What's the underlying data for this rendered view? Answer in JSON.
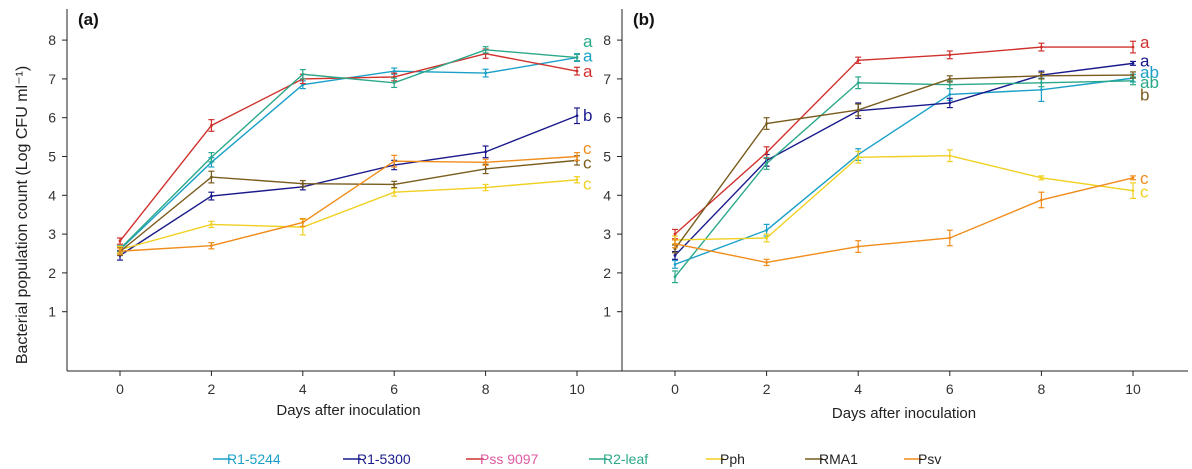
{
  "figure": {
    "ylabel": "Bacterial population count (Log CFU ml⁻¹)",
    "xlabel": "Days after inoculation",
    "panel_labels": [
      "(a)",
      "(b)"
    ]
  },
  "chart_data": [
    {
      "type": "line",
      "panel": "(a)",
      "x": [
        0,
        2,
        4,
        6,
        8,
        10
      ],
      "xlabel": "Days after inoculation",
      "ylabel": "Bacterial population count (Log CFU ml⁻¹)",
      "ylim": [
        0,
        8.4
      ],
      "yticks": [
        1,
        2,
        3,
        4,
        5,
        6,
        7,
        8
      ],
      "xticks": [
        0,
        2,
        4,
        6,
        8,
        10
      ],
      "grid": false,
      "series": [
        {
          "name": "R1-5244",
          "color": "#1aa0c8",
          "values": [
            2.6,
            4.85,
            6.85,
            7.2,
            7.15,
            7.55
          ],
          "err": [
            0.08,
            0.12,
            0.1,
            0.08,
            0.1,
            0.1
          ],
          "letter": "a"
        },
        {
          "name": "R1-5300",
          "color": "#1a1a8c",
          "values": [
            2.45,
            3.98,
            4.22,
            4.78,
            5.12,
            6.05
          ],
          "err": [
            0.12,
            0.1,
            0.08,
            0.12,
            0.15,
            0.2
          ],
          "letter": "b"
        },
        {
          "name": "Pss 9097",
          "color": "#d0312d",
          "values": [
            2.82,
            5.8,
            7.0,
            7.05,
            7.65,
            7.2
          ],
          "err": [
            0.08,
            0.15,
            0.12,
            0.1,
            0.12,
            0.1
          ],
          "letter": "a"
        },
        {
          "name": "R2-leaf",
          "color": "#2aa889",
          "values": [
            2.62,
            4.98,
            7.12,
            6.9,
            7.75,
            7.55
          ],
          "err": [
            0.08,
            0.12,
            0.12,
            0.12,
            0.08,
            0.08
          ],
          "letter": "a"
        },
        {
          "name": "Pph",
          "color": "#f0d020",
          "values": [
            2.6,
            3.25,
            3.18,
            4.08,
            4.2,
            4.4
          ],
          "err": [
            0.08,
            0.08,
            0.2,
            0.1,
            0.08,
            0.08
          ],
          "letter": "c"
        },
        {
          "name": "RMA1",
          "color": "#7a5c1e",
          "values": [
            2.55,
            4.47,
            4.3,
            4.28,
            4.68,
            4.9
          ],
          "err": [
            0.1,
            0.15,
            0.08,
            0.08,
            0.12,
            0.12
          ],
          "letter": "c"
        },
        {
          "name": "Psv",
          "color": "#f08c1a",
          "values": [
            2.56,
            2.7,
            3.3,
            4.88,
            4.85,
            5.0
          ],
          "err": [
            0.08,
            0.08,
            0.1,
            0.15,
            0.08,
            0.1
          ],
          "letter": "c"
        }
      ],
      "letter_colors": [
        "#2aa889",
        "#1aa0c8",
        "#d0312d",
        "#1a1a8c",
        "#f08c1a",
        "#7a5c1e",
        "#f0d020"
      ],
      "letter_texts": [
        "a",
        "a",
        "a",
        "b",
        "c",
        "c",
        "c"
      ],
      "letter_values": [
        7.98,
        7.6,
        7.2,
        6.07,
        5.22,
        4.85,
        4.3
      ]
    },
    {
      "type": "line",
      "panel": "(b)",
      "x": [
        0,
        2,
        4,
        6,
        8,
        10
      ],
      "xlabel": "Days after inoculation",
      "ylabel": "",
      "ylim": [
        0,
        8.4
      ],
      "yticks": [
        1,
        2,
        3,
        4,
        5,
        6,
        7,
        8
      ],
      "xticks": [
        0,
        2,
        4,
        6,
        8,
        10
      ],
      "grid": false,
      "series": [
        {
          "name": "R1-5244",
          "color": "#1aa0c8",
          "values": [
            2.22,
            3.1,
            5.05,
            6.6,
            6.72,
            7.02
          ],
          "err": [
            0.1,
            0.15,
            0.15,
            0.15,
            0.3,
            0.1
          ],
          "letter": "ab"
        },
        {
          "name": "R1-5300",
          "color": "#1a1a8c",
          "values": [
            2.45,
            4.9,
            6.18,
            6.38,
            7.1,
            7.4
          ],
          "err": [
            0.1,
            0.15,
            0.2,
            0.12,
            0.1,
            0.05
          ],
          "letter": "a"
        },
        {
          "name": "Pss 9097",
          "color": "#d0312d",
          "values": [
            3.0,
            5.1,
            7.48,
            7.62,
            7.82,
            7.82
          ],
          "err": [
            0.12,
            0.15,
            0.08,
            0.1,
            0.1,
            0.15
          ],
          "letter": "a"
        },
        {
          "name": "R2-leaf",
          "color": "#2aa889",
          "values": [
            1.9,
            4.82,
            6.9,
            6.85,
            6.9,
            6.95
          ],
          "err": [
            0.15,
            0.15,
            0.15,
            0.1,
            0.1,
            0.1
          ],
          "letter": "ab"
        },
        {
          "name": "Pph",
          "color": "#f0d020",
          "values": [
            2.85,
            2.9,
            4.98,
            5.02,
            4.45,
            4.12
          ],
          "err": [
            0.1,
            0.1,
            0.15,
            0.15,
            0.05,
            0.2
          ],
          "letter": "c"
        },
        {
          "name": "RMA1",
          "color": "#7a5c1e",
          "values": [
            2.62,
            5.85,
            6.2,
            7.0,
            7.08,
            7.1
          ],
          "err": [
            0.1,
            0.15,
            0.15,
            0.08,
            0.08,
            0.08
          ],
          "letter": "b"
        },
        {
          "name": "Psv",
          "color": "#f08c1a",
          "values": [
            2.75,
            2.27,
            2.68,
            2.9,
            3.88,
            4.45
          ],
          "err": [
            0.1,
            0.08,
            0.15,
            0.2,
            0.2,
            0.05
          ],
          "letter": "c"
        }
      ],
      "letter_colors": [
        "#d0312d",
        "#1a1a8c",
        "#1aa0c8",
        "#2aa889",
        "#7a5c1e",
        "#f08c1a",
        "#f0d020"
      ],
      "letter_texts": [
        "a",
        "a",
        "ab",
        "ab",
        "b",
        "c",
        "c"
      ],
      "letter_values": [
        7.95,
        7.48,
        7.18,
        6.92,
        6.6,
        4.45,
        4.1
      ]
    }
  ],
  "legend": {
    "items": [
      {
        "name": "R1-5244",
        "color": "#1aa0c8"
      },
      {
        "name": "R1-5300",
        "color": "#1a1a8c"
      },
      {
        "name": "Pss 9097",
        "color": "#d0312d"
      },
      {
        "name": "R2-leaf",
        "color": "#2aa889"
      },
      {
        "name": "Pph",
        "color": "#f0d020"
      },
      {
        "name": "RMA1",
        "color": "#7a5c1e"
      },
      {
        "name": "Psv",
        "color": "#f08c1a"
      }
    ],
    "label_colors": [
      "#1aa0c8",
      "#1a1a8c",
      "#e05aa0",
      "#2aa889",
      "#222222",
      "#222222",
      "#222222"
    ]
  }
}
